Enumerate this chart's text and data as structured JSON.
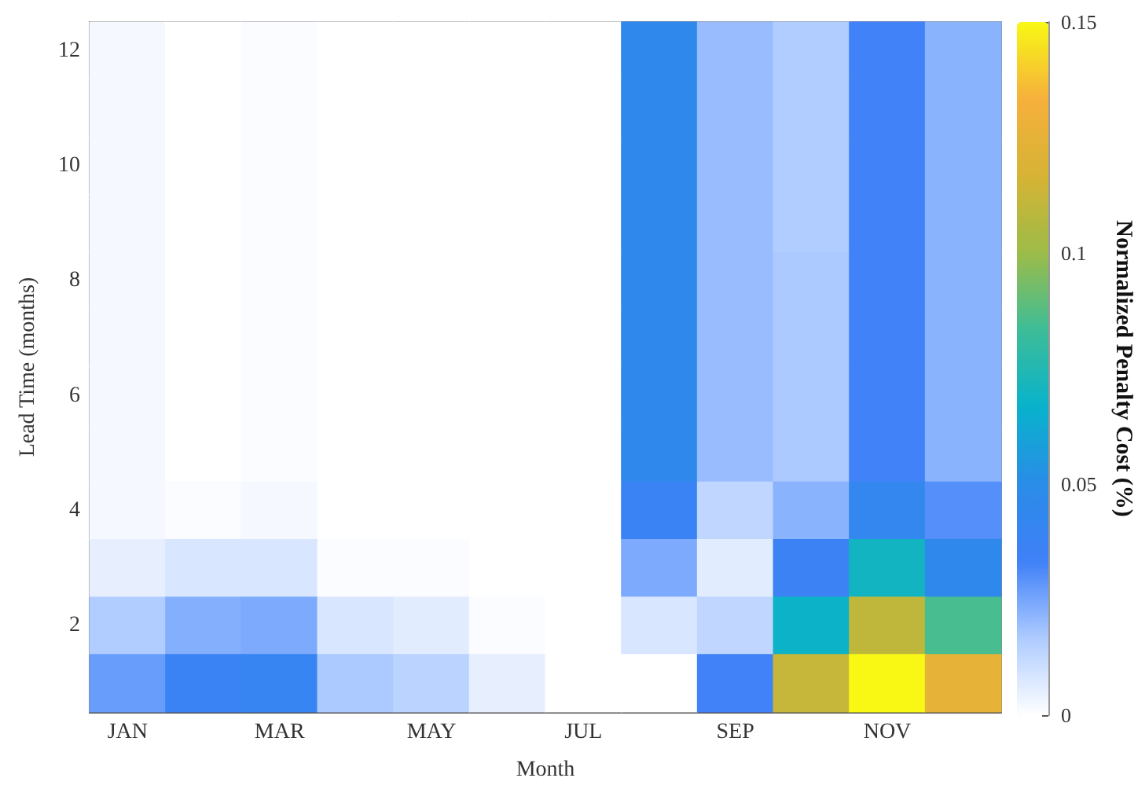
{
  "chart_data": {
    "type": "heatmap",
    "xlabel": "Month",
    "ylabel": "Lead Time (months)",
    "clabel": "Normalized Penalty Cost (%)",
    "categories": [
      "JAN",
      null,
      "MAR",
      null,
      "MAY",
      null,
      "JUL",
      null,
      "SEP",
      null,
      "NOV",
      null
    ],
    "y_categories": [
      "12",
      null,
      "10",
      null,
      "8",
      null,
      "6",
      null,
      "4",
      null,
      "2",
      null
    ],
    "cells": [
      [
        0.002,
        0,
        0.001,
        0,
        0,
        0,
        0,
        0.046,
        0.02,
        0.016,
        0.033,
        0.022
      ],
      [
        0.002,
        0,
        0.001,
        0,
        0,
        0,
        0,
        0.046,
        0.02,
        0.016,
        0.033,
        0.022
      ],
      [
        0.002,
        0,
        0.001,
        0,
        0,
        0,
        0,
        0.046,
        0.02,
        0.016,
        0.033,
        0.022
      ],
      [
        0.002,
        0,
        0.001,
        0,
        0,
        0,
        0,
        0.046,
        0.02,
        0.016,
        0.033,
        0.022
      ],
      [
        0.002,
        0,
        0.001,
        0,
        0,
        0,
        0,
        0.046,
        0.02,
        0.017,
        0.033,
        0.022
      ],
      [
        0.002,
        0,
        0.001,
        0,
        0,
        0,
        0,
        0.046,
        0.02,
        0.017,
        0.033,
        0.022
      ],
      [
        0.002,
        0,
        0.001,
        0,
        0,
        0,
        0,
        0.046,
        0.02,
        0.017,
        0.033,
        0.022
      ],
      [
        0.002,
        0,
        0.001,
        0,
        0,
        0,
        0,
        0.046,
        0.02,
        0.017,
        0.033,
        0.022
      ],
      [
        0.002,
        0.001,
        0.002,
        0,
        0,
        0,
        0,
        0.038,
        0.013,
        0.022,
        0.043,
        0.03
      ],
      [
        0.005,
        0.008,
        0.008,
        0.001,
        0.001,
        0,
        0,
        0.024,
        0.006,
        0.036,
        0.07,
        0.046
      ],
      [
        0.016,
        0.023,
        0.024,
        0.008,
        0.006,
        0.001,
        0,
        0.008,
        0.013,
        0.068,
        0.11,
        0.085
      ],
      [
        0.027,
        0.038,
        0.04,
        0.017,
        0.014,
        0.005,
        0,
        0,
        0.033,
        0.112,
        0.15,
        0.125
      ]
    ],
    "clim": [
      0,
      0.15
    ],
    "cticks": [
      0,
      0.05,
      0.1,
      0.15
    ],
    "grid": false
  }
}
